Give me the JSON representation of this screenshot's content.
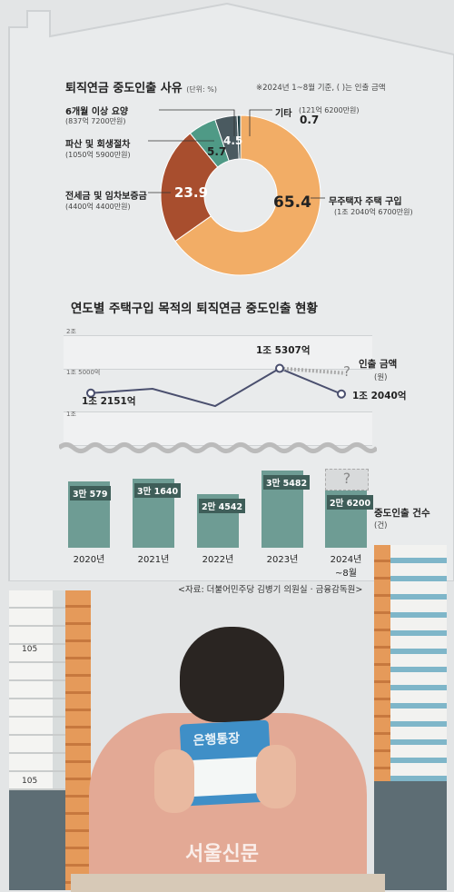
{
  "chart_data": [
    {
      "type": "pie",
      "title": "퇴직연금 중도인출 사유",
      "unit_label": "(단위: %)",
      "note": "※2024년 1~8월 기준, ( )는 인출 금액",
      "slices": [
        {
          "name": "무주택자 주택 구입",
          "value": 65.4,
          "value_label": "65.4",
          "amount": "(1조 2040억 6700만원)",
          "color": "#f2ad66"
        },
        {
          "name": "전세금 및 임차보증금",
          "value": 23.9,
          "value_label": "23.9",
          "amount": "(4400억 4400만원)",
          "color": "#a84e2e"
        },
        {
          "name": "파산 및 회생절차",
          "value": 5.7,
          "value_label": "5.7",
          "amount": "(1050억 5900만원)",
          "color": "#4f9a86"
        },
        {
          "name": "6개월 이상 요양",
          "value": 4.5,
          "value_label": "4.5",
          "amount": "(837억 7200만원)",
          "color": "#4a5a60"
        },
        {
          "name": "기타",
          "value": 0.7,
          "value_label": "0.7",
          "amount": "(121억 6200만원)",
          "color": "#1e3d40"
        }
      ]
    },
    {
      "type": "line",
      "title": "연도별 주택구입 목적의 퇴직연금 중도인출 현황",
      "series_name": "인출 금액",
      "series_unit": "(원)",
      "y_ticks": [
        "2조",
        "1조 5000억",
        "1조"
      ],
      "ylim": [
        0.9,
        2.0
      ],
      "x": [
        "2020년",
        "2021년",
        "2022년",
        "2023년",
        "2024년 ~8월"
      ],
      "values": [
        1.2151,
        1.27,
        1.05,
        1.5307,
        1.2041
      ],
      "labels": [
        {
          "i": 0,
          "text": "1조 2151억"
        },
        {
          "i": 3,
          "text": "1조 5307억"
        },
        {
          "i": 4,
          "text": "1조 2040억"
        }
      ],
      "question_mark": "?"
    },
    {
      "type": "bar",
      "series_name": "중도인출 건수",
      "series_unit": "(건)",
      "categories": [
        "2020년",
        "2021년",
        "2022년",
        "2023년",
        "2024년\n~8월"
      ],
      "values": [
        30579,
        31640,
        24542,
        35482,
        26200
      ],
      "value_labels": [
        "3만 579",
        "3만 1640",
        "2만 4542",
        "3만 5482",
        "2만 6200"
      ],
      "question_mark": "?"
    }
  ],
  "source": "<자료: 더불어민주당 김병기 의원실 · 금융감독원>",
  "illustration": {
    "building_numbers": [
      "105",
      "105"
    ],
    "bankbook_text": "은행통장",
    "logo": "서울신문"
  },
  "colors": {
    "background": "#e3e5e6",
    "bar": "#6e9c94",
    "line": "#4a4f6e"
  }
}
